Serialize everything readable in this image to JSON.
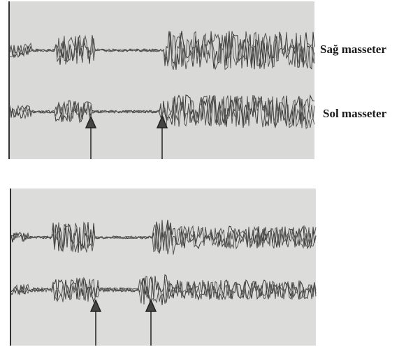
{
  "labels": {
    "right": "Sağ masseter",
    "left": "Sol masseter"
  }
}
